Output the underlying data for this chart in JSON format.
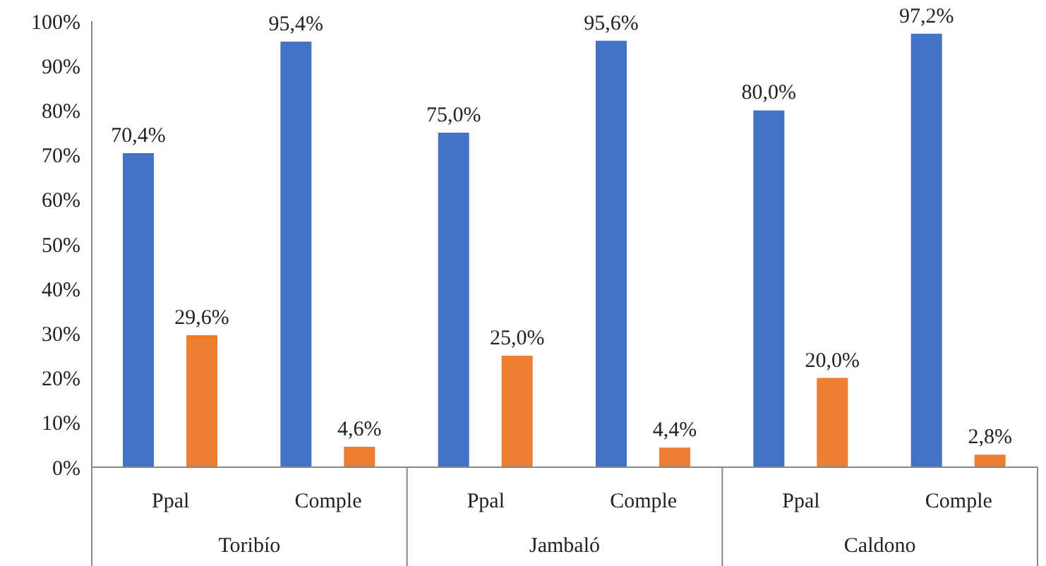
{
  "chart_data": {
    "type": "bar",
    "categories": [
      "Ppal",
      "Comple",
      "Ppal",
      "Comple",
      "Ppal",
      "Comple"
    ],
    "series": [
      {
        "color": "#4472c4",
        "values": [
          70.4,
          95.4,
          75.0,
          95.6,
          80.0,
          97.2
        ],
        "value_labels": [
          "70,4%",
          "95,4%",
          "75,0%",
          "95,6%",
          "80,0%",
          "97,2%"
        ]
      },
      {
        "color": "#ed7d31",
        "values": [
          29.6,
          4.6,
          25.0,
          4.4,
          20.0,
          2.8
        ],
        "value_labels": [
          "29,6%",
          "4,6%",
          "25,0%",
          "4,4%",
          "20,0%",
          "2,8%"
        ]
      }
    ],
    "ylim": [
      0,
      100
    ],
    "yticks": [
      {
        "value": 0,
        "label": "0%"
      },
      {
        "value": 10,
        "label": "10%"
      },
      {
        "value": 20,
        "label": "20%"
      },
      {
        "value": 30,
        "label": "30%"
      },
      {
        "value": 40,
        "label": "40%"
      },
      {
        "value": 50,
        "label": "50%"
      },
      {
        "value": 60,
        "label": "60%"
      },
      {
        "value": 70,
        "label": "70%"
      },
      {
        "value": 80,
        "label": "80%"
      },
      {
        "value": 90,
        "label": "90%"
      },
      {
        "value": 100,
        "label": "100%"
      }
    ],
    "annotations": [
      "Toribío",
      "Jambaló",
      "Caldono"
    ]
  }
}
